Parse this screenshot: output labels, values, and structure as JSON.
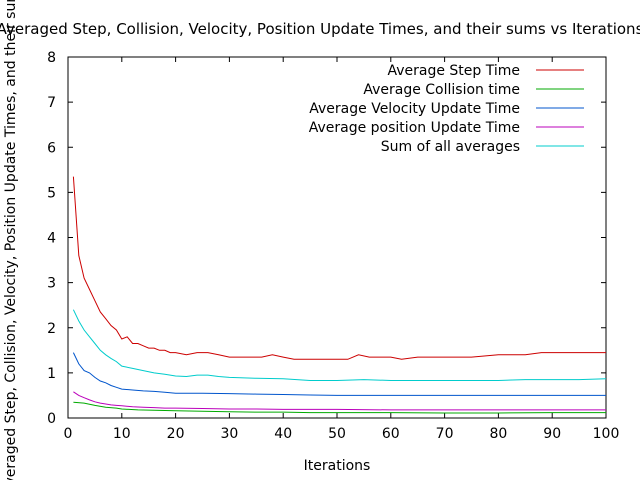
{
  "chart_data": {
    "type": "line",
    "title": "Averaged Step, Collision, Velocity, Position Update Times, and their sums vs Iterations",
    "xlabel": "Iterations",
    "ylabel": "Averaged Step, Collision, Velocity, Position Update Times, and their sums",
    "xlim": [
      0,
      100
    ],
    "ylim": [
      0,
      8
    ],
    "x_ticks": [
      0,
      10,
      20,
      30,
      40,
      50,
      60,
      70,
      80,
      90,
      100
    ],
    "y_ticks": [
      0,
      1,
      2,
      3,
      4,
      5,
      6,
      7,
      8
    ],
    "grid": false,
    "legend_position": "top-right",
    "series": [
      {
        "name": "Average Step Time",
        "color": "#cc0000",
        "points": [
          [
            1,
            5.35
          ],
          [
            2,
            3.6
          ],
          [
            3,
            3.1
          ],
          [
            4,
            2.85
          ],
          [
            5,
            2.6
          ],
          [
            6,
            2.35
          ],
          [
            7,
            2.2
          ],
          [
            8,
            2.05
          ],
          [
            9,
            1.95
          ],
          [
            10,
            1.75
          ],
          [
            11,
            1.8
          ],
          [
            12,
            1.65
          ],
          [
            13,
            1.65
          ],
          [
            14,
            1.6
          ],
          [
            15,
            1.55
          ],
          [
            16,
            1.55
          ],
          [
            17,
            1.5
          ],
          [
            18,
            1.5
          ],
          [
            19,
            1.45
          ],
          [
            20,
            1.45
          ],
          [
            22,
            1.4
          ],
          [
            24,
            1.45
          ],
          [
            26,
            1.45
          ],
          [
            28,
            1.4
          ],
          [
            30,
            1.35
          ],
          [
            32,
            1.35
          ],
          [
            34,
            1.35
          ],
          [
            36,
            1.35
          ],
          [
            38,
            1.4
          ],
          [
            40,
            1.35
          ],
          [
            42,
            1.3
          ],
          [
            45,
            1.3
          ],
          [
            48,
            1.3
          ],
          [
            50,
            1.3
          ],
          [
            52,
            1.3
          ],
          [
            54,
            1.4
          ],
          [
            56,
            1.35
          ],
          [
            58,
            1.35
          ],
          [
            60,
            1.35
          ],
          [
            62,
            1.3
          ],
          [
            65,
            1.35
          ],
          [
            70,
            1.35
          ],
          [
            75,
            1.35
          ],
          [
            80,
            1.4
          ],
          [
            85,
            1.4
          ],
          [
            88,
            1.45
          ],
          [
            90,
            1.45
          ],
          [
            95,
            1.45
          ],
          [
            98,
            1.45
          ],
          [
            100,
            1.45
          ]
        ]
      },
      {
        "name": "Average Collision time",
        "color": "#00aa00",
        "points": [
          [
            1,
            0.35
          ],
          [
            3,
            0.33
          ],
          [
            5,
            0.28
          ],
          [
            7,
            0.24
          ],
          [
            9,
            0.22
          ],
          [
            10,
            0.2
          ],
          [
            13,
            0.18
          ],
          [
            16,
            0.17
          ],
          [
            20,
            0.16
          ],
          [
            25,
            0.15
          ],
          [
            30,
            0.14
          ],
          [
            35,
            0.13
          ],
          [
            40,
            0.13
          ],
          [
            45,
            0.12
          ],
          [
            50,
            0.12
          ],
          [
            60,
            0.12
          ],
          [
            70,
            0.11
          ],
          [
            80,
            0.11
          ],
          [
            90,
            0.12
          ],
          [
            100,
            0.12
          ]
        ]
      },
      {
        "name": "Average Velocity Update Time",
        "color": "#0055cc",
        "points": [
          [
            1,
            1.45
          ],
          [
            2,
            1.2
          ],
          [
            3,
            1.05
          ],
          [
            4,
            1.0
          ],
          [
            5,
            0.9
          ],
          [
            6,
            0.82
          ],
          [
            7,
            0.78
          ],
          [
            8,
            0.72
          ],
          [
            9,
            0.68
          ],
          [
            10,
            0.64
          ],
          [
            12,
            0.62
          ],
          [
            14,
            0.6
          ],
          [
            16,
            0.59
          ],
          [
            18,
            0.57
          ],
          [
            20,
            0.55
          ],
          [
            25,
            0.55
          ],
          [
            30,
            0.54
          ],
          [
            35,
            0.53
          ],
          [
            40,
            0.52
          ],
          [
            45,
            0.51
          ],
          [
            50,
            0.5
          ],
          [
            55,
            0.5
          ],
          [
            60,
            0.5
          ],
          [
            65,
            0.5
          ],
          [
            70,
            0.5
          ],
          [
            80,
            0.5
          ],
          [
            90,
            0.5
          ],
          [
            100,
            0.5
          ]
        ]
      },
      {
        "name": "Average position Update Time",
        "color": "#bb00bb",
        "points": [
          [
            1,
            0.58
          ],
          [
            2,
            0.5
          ],
          [
            3,
            0.45
          ],
          [
            4,
            0.4
          ],
          [
            5,
            0.36
          ],
          [
            6,
            0.33
          ],
          [
            7,
            0.31
          ],
          [
            8,
            0.29
          ],
          [
            9,
            0.28
          ],
          [
            10,
            0.27
          ],
          [
            12,
            0.25
          ],
          [
            14,
            0.24
          ],
          [
            16,
            0.23
          ],
          [
            18,
            0.22
          ],
          [
            20,
            0.22
          ],
          [
            25,
            0.21
          ],
          [
            30,
            0.2
          ],
          [
            35,
            0.2
          ],
          [
            40,
            0.19
          ],
          [
            50,
            0.19
          ],
          [
            60,
            0.18
          ],
          [
            70,
            0.18
          ],
          [
            80,
            0.18
          ],
          [
            90,
            0.18
          ],
          [
            100,
            0.18
          ]
        ]
      },
      {
        "name": "Sum of all averages",
        "color": "#00cccc",
        "points": [
          [
            1,
            2.4
          ],
          [
            2,
            2.15
          ],
          [
            3,
            1.95
          ],
          [
            4,
            1.8
          ],
          [
            5,
            1.65
          ],
          [
            6,
            1.5
          ],
          [
            7,
            1.4
          ],
          [
            8,
            1.32
          ],
          [
            9,
            1.25
          ],
          [
            10,
            1.15
          ],
          [
            12,
            1.1
          ],
          [
            14,
            1.05
          ],
          [
            16,
            1.0
          ],
          [
            18,
            0.97
          ],
          [
            20,
            0.93
          ],
          [
            22,
            0.92
          ],
          [
            24,
            0.95
          ],
          [
            26,
            0.95
          ],
          [
            28,
            0.92
          ],
          [
            30,
            0.9
          ],
          [
            35,
            0.88
          ],
          [
            40,
            0.87
          ],
          [
            45,
            0.83
          ],
          [
            50,
            0.83
          ],
          [
            55,
            0.85
          ],
          [
            60,
            0.83
          ],
          [
            65,
            0.83
          ],
          [
            70,
            0.83
          ],
          [
            75,
            0.83
          ],
          [
            80,
            0.83
          ],
          [
            85,
            0.85
          ],
          [
            90,
            0.85
          ],
          [
            95,
            0.85
          ],
          [
            100,
            0.87
          ]
        ]
      }
    ]
  }
}
